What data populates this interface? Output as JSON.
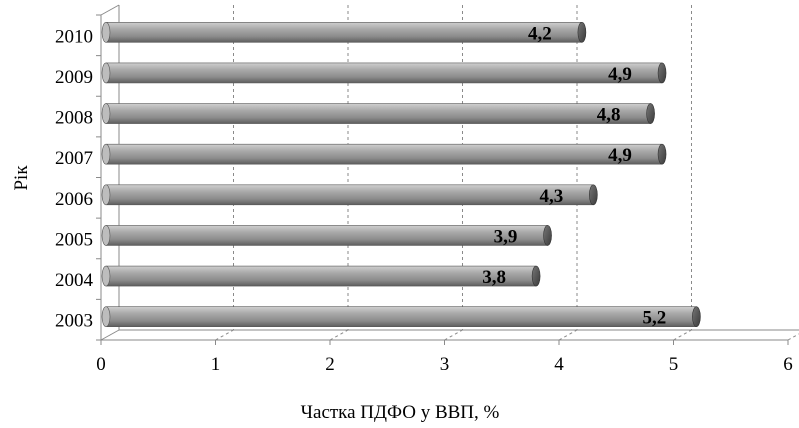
{
  "chart_data": {
    "type": "bar",
    "orientation": "horizontal",
    "style": "3d-cylinder",
    "categories": [
      "2003",
      "2004",
      "2005",
      "2006",
      "2007",
      "2008",
      "2009",
      "2010"
    ],
    "values": [
      5.2,
      3.8,
      3.9,
      4.3,
      4.9,
      4.8,
      4.9,
      4.2
    ],
    "value_labels": [
      "5,2",
      "3,8",
      "3,9",
      "4,3",
      "4,9",
      "4,8",
      "4,9",
      "4,2"
    ],
    "xlabel": "Частка ПДФО у ВВП, %",
    "ylabel": "Рік",
    "xlim": [
      0,
      6
    ],
    "x_ticks": [
      "0",
      "1",
      "2",
      "3",
      "4",
      "5",
      "6"
    ],
    "grid": "vertical-dashed",
    "legend": "none",
    "bar_color": "#9a9a9a"
  }
}
